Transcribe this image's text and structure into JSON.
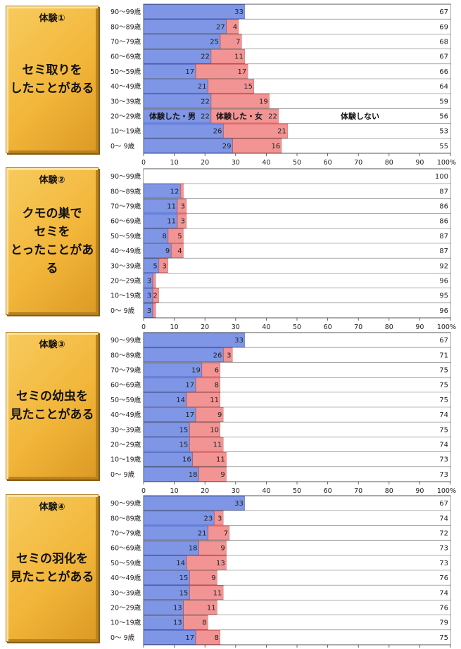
{
  "unit_label": "100%",
  "series_labels": {
    "male": "体験した・男",
    "female": "体験した・女",
    "none": "体験しない"
  },
  "colors": {
    "male": "#7f96e6",
    "female": "#f39494",
    "none": "#ffffff",
    "panel": "#f2b63a"
  },
  "chart_data": [
    {
      "type": "bar",
      "panel_label": "体験①",
      "title": "セミ取りを\nしたことがある",
      "categories": [
        "90～99歳",
        "80～89歳",
        "70～79歳",
        "60～69歳",
        "50～59歳",
        "40～49歳",
        "30～39歳",
        "20～29歳",
        "10～19歳",
        "0～ 9歳"
      ],
      "series": [
        {
          "name": "体験した・男",
          "values": [
            33,
            27,
            25,
            22,
            17,
            21,
            22,
            22,
            26,
            29
          ]
        },
        {
          "name": "体験した・女",
          "values": [
            0,
            4,
            7,
            11,
            17,
            15,
            19,
            22,
            21,
            16
          ]
        },
        {
          "name": "体験しない",
          "values": [
            67,
            69,
            68,
            67,
            66,
            64,
            59,
            56,
            53,
            55
          ]
        }
      ],
      "xlim": [
        0,
        100
      ],
      "xticks": [
        "0",
        "10",
        "20",
        "30",
        "40",
        "50",
        "60",
        "70",
        "80",
        "90",
        "100%"
      ]
    },
    {
      "type": "bar",
      "panel_label": "体験②",
      "title": "クモの巣で\nセミを\nとったことがある",
      "categories": [
        "90～99歳",
        "80～89歳",
        "70～79歳",
        "60～69歳",
        "50～59歳",
        "40～49歳",
        "30～39歳",
        "20～29歳",
        "10～19歳",
        "0～ 9歳"
      ],
      "series": [
        {
          "values": [
            0,
            12,
            11,
            11,
            8,
            9,
            5,
            3,
            3,
            3
          ]
        },
        {
          "values": [
            0,
            1,
            3,
            3,
            5,
            4,
            3,
            1,
            2,
            1
          ]
        },
        {
          "values": [
            100,
            87,
            86,
            86,
            87,
            87,
            92,
            96,
            95,
            96
          ]
        }
      ],
      "xlim": [
        0,
        100
      ],
      "xticks": [
        "0",
        "10",
        "20",
        "30",
        "40",
        "50",
        "60",
        "70",
        "80",
        "90",
        "100%"
      ]
    },
    {
      "type": "bar",
      "panel_label": "体験③",
      "title": "セミの幼虫を\n見たことがある",
      "categories": [
        "90～99歳",
        "80～89歳",
        "70～79歳",
        "60～69歳",
        "50～59歳",
        "40～49歳",
        "30～39歳",
        "20～29歳",
        "10～19歳",
        "0～ 9歳"
      ],
      "series": [
        {
          "values": [
            33,
            26,
            19,
            17,
            14,
            17,
            15,
            15,
            16,
            18
          ]
        },
        {
          "values": [
            0,
            3,
            6,
            8,
            11,
            9,
            10,
            11,
            11,
            9
          ]
        },
        {
          "values": [
            67,
            71,
            75,
            75,
            75,
            74,
            75,
            74,
            73,
            73
          ]
        }
      ],
      "xlim": [
        0,
        100
      ],
      "xticks": [
        "0",
        "10",
        "20",
        "30",
        "40",
        "50",
        "60",
        "70",
        "80",
        "90",
        "100%"
      ]
    },
    {
      "type": "bar",
      "panel_label": "体験④",
      "title": "セミの羽化を\n見たことがある",
      "categories": [
        "90～99歳",
        "80～89歳",
        "70～79歳",
        "60～69歳",
        "50～59歳",
        "40～49歳",
        "30～39歳",
        "20～29歳",
        "10～19歳",
        "0～ 9歳"
      ],
      "series": [
        {
          "values": [
            33,
            23,
            21,
            18,
            14,
            15,
            15,
            13,
            13,
            17
          ]
        },
        {
          "values": [
            0,
            3,
            7,
            9,
            13,
            9,
            11,
            11,
            8,
            8
          ]
        },
        {
          "values": [
            67,
            74,
            72,
            73,
            73,
            76,
            74,
            76,
            79,
            75
          ]
        }
      ],
      "xlim": [
        0,
        100
      ],
      "xticks": [
        "0",
        "10",
        "20",
        "30",
        "40",
        "50",
        "60",
        "70",
        "80",
        "90",
        "100%"
      ]
    }
  ]
}
